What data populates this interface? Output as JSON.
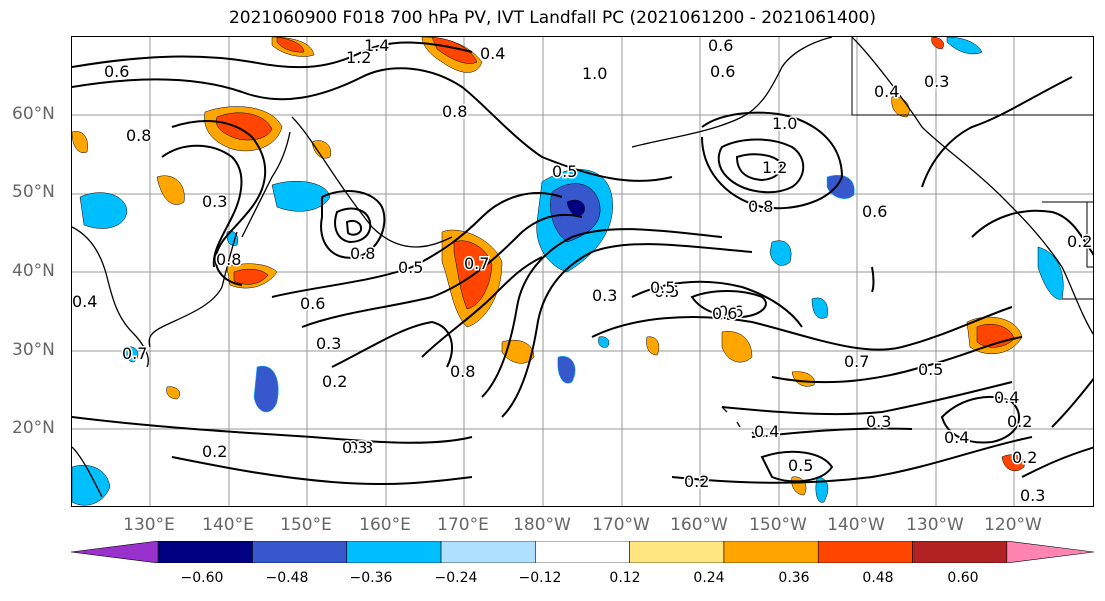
{
  "title": "2021060900 F018 700 hPa PV, IVT Landfall PC (2021061200 - 2021061400)",
  "lat_labels": [
    "60°N",
    "50°N",
    "40°N",
    "30°N",
    "20°N"
  ],
  "lon_labels": [
    "130°E",
    "140°E",
    "150°E",
    "160°E",
    "170°E",
    "180°W",
    "170°W",
    "160°W",
    "150°W",
    "140°W",
    "130°W",
    "120°W"
  ],
  "colorbar": {
    "ticks": [
      "−0.60",
      "−0.48",
      "−0.36",
      "−0.24",
      "−0.12",
      "0.12",
      "0.24",
      "0.36",
      "0.48",
      "0.60"
    ],
    "colors": [
      "#9932cc",
      "#000080",
      "#3758cc",
      "#00bfff",
      "#b0e0ff",
      "#ffffff",
      "#ffe680",
      "#ffa500",
      "#ff4500",
      "#b22222",
      "#ff85b0"
    ]
  },
  "contour_labels": [
    "0.6",
    "1.4",
    "1.2",
    "0.4",
    "0.6",
    "0.6",
    "1.0",
    "0.8",
    "0.5",
    "1.2",
    "1.0",
    "0.8",
    "0.5",
    "0.7",
    "0.8",
    "0.8",
    "0.5",
    "0.6",
    "0.3",
    "0.4",
    "0.2",
    "0.3",
    "0.7",
    "0.6",
    "0.3",
    "0.5",
    "0.6",
    "0.7",
    "0.5",
    "0.3",
    "0.4",
    "0.4",
    "0.5",
    "0.2",
    "0.3",
    "0.2",
    "0.4",
    "0.2",
    "0.3",
    "0.2",
    "0.8",
    "0.6",
    "0.4",
    "0.3",
    "0.2",
    "0.8",
    "0.3"
  ]
}
